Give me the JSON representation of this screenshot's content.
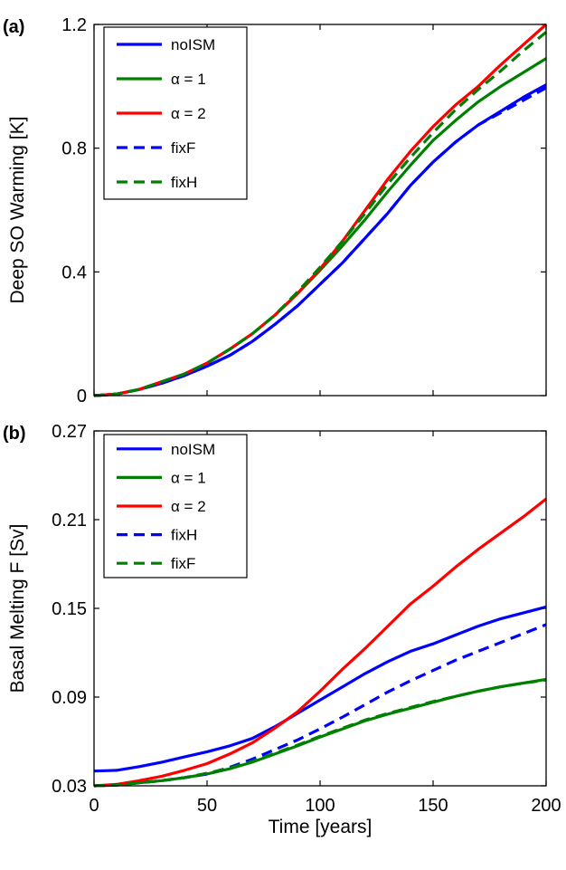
{
  "chart_data": [
    {
      "panel_label": "(a)",
      "type": "line",
      "xlabel": "",
      "ylabel": "Deep SO Warming [K]",
      "xlim": [
        0,
        200
      ],
      "ylim": [
        0,
        1.2
      ],
      "yticks": [
        0,
        0.4,
        0.8,
        1.2
      ],
      "ytick_labels": [
        "0",
        "0.4",
        "0.8",
        "1.2"
      ],
      "xticks": [
        0,
        50,
        100,
        150,
        200
      ],
      "xtick_labels": [],
      "grid": false,
      "legend_position": "top-left",
      "series": [
        {
          "name": "noISM",
          "color": "#0000ff",
          "dash": "solid",
          "x": [
            0,
            10,
            20,
            30,
            40,
            50,
            60,
            70,
            80,
            90,
            100,
            110,
            120,
            130,
            140,
            150,
            160,
            170,
            180,
            190,
            200
          ],
          "y": [
            0,
            0.005,
            0.02,
            0.04,
            0.065,
            0.095,
            0.13,
            0.175,
            0.23,
            0.29,
            0.36,
            0.43,
            0.51,
            0.59,
            0.68,
            0.755,
            0.82,
            0.875,
            0.92,
            0.965,
            1.005
          ]
        },
        {
          "name": "α = 1",
          "color": "#008000",
          "dash": "solid",
          "x": [
            0,
            10,
            20,
            30,
            40,
            50,
            60,
            70,
            80,
            90,
            100,
            110,
            120,
            130,
            140,
            150,
            160,
            170,
            180,
            190,
            200
          ],
          "y": [
            0,
            0.005,
            0.02,
            0.045,
            0.07,
            0.105,
            0.15,
            0.2,
            0.26,
            0.33,
            0.405,
            0.485,
            0.57,
            0.66,
            0.745,
            0.825,
            0.89,
            0.95,
            1.0,
            1.045,
            1.09
          ]
        },
        {
          "name": "α = 2",
          "color": "#ff0000",
          "dash": "solid",
          "x": [
            0,
            10,
            20,
            30,
            40,
            50,
            60,
            70,
            80,
            90,
            100,
            110,
            120,
            130,
            140,
            150,
            160,
            170,
            180,
            190,
            200
          ],
          "y": [
            0,
            0.005,
            0.02,
            0.045,
            0.07,
            0.105,
            0.15,
            0.2,
            0.26,
            0.33,
            0.41,
            0.5,
            0.6,
            0.7,
            0.79,
            0.87,
            0.94,
            1.0,
            1.07,
            1.135,
            1.2
          ]
        },
        {
          "name": "fixF",
          "color": "#0000ff",
          "dash": "dashed",
          "x": [
            0,
            10,
            20,
            30,
            40,
            50,
            60,
            70,
            80,
            90,
            100,
            110,
            120,
            130,
            140,
            150,
            160,
            170,
            180,
            190,
            200
          ],
          "y": [
            0,
            0.005,
            0.02,
            0.04,
            0.065,
            0.095,
            0.13,
            0.175,
            0.23,
            0.29,
            0.36,
            0.43,
            0.51,
            0.59,
            0.68,
            0.755,
            0.82,
            0.875,
            0.915,
            0.955,
            0.995
          ]
        },
        {
          "name": "fixH",
          "color": "#008000",
          "dash": "dashed",
          "x": [
            0,
            10,
            20,
            30,
            40,
            50,
            60,
            70,
            80,
            90,
            100,
            110,
            120,
            130,
            140,
            150,
            160,
            170,
            180,
            190,
            200
          ],
          "y": [
            0,
            0.005,
            0.02,
            0.045,
            0.07,
            0.105,
            0.15,
            0.2,
            0.26,
            0.335,
            0.415,
            0.5,
            0.59,
            0.685,
            0.77,
            0.85,
            0.925,
            0.99,
            1.05,
            1.115,
            1.175
          ]
        }
      ]
    },
    {
      "panel_label": "(b)",
      "type": "line",
      "xlabel": "Time [years]",
      "ylabel": "Basal Melting F [Sv]",
      "xlim": [
        0,
        200
      ],
      "ylim": [
        0.03,
        0.27
      ],
      "yticks": [
        0.03,
        0.09,
        0.15,
        0.21,
        0.27
      ],
      "ytick_labels": [
        "0.03",
        "0.09",
        "0.15",
        "0.21",
        "0.27"
      ],
      "xticks": [
        0,
        50,
        100,
        150,
        200
      ],
      "xtick_labels": [
        "0",
        "50",
        "100",
        "150",
        "200"
      ],
      "grid": false,
      "legend_position": "top-left",
      "series": [
        {
          "name": "noISM",
          "color": "#0000ff",
          "dash": "solid",
          "x": [
            0,
            10,
            20,
            30,
            40,
            50,
            60,
            70,
            80,
            90,
            100,
            110,
            120,
            130,
            140,
            150,
            160,
            170,
            180,
            190,
            200
          ],
          "y": [
            0.04,
            0.0405,
            0.043,
            0.046,
            0.0495,
            0.053,
            0.057,
            0.062,
            0.07,
            0.079,
            0.088,
            0.097,
            0.106,
            0.114,
            0.121,
            0.126,
            0.132,
            0.138,
            0.143,
            0.147,
            0.151
          ]
        },
        {
          "name": "α = 1",
          "color": "#008000",
          "dash": "solid",
          "x": [
            0,
            10,
            20,
            30,
            40,
            50,
            60,
            70,
            80,
            90,
            100,
            110,
            120,
            130,
            140,
            150,
            160,
            170,
            180,
            190,
            200
          ],
          "y": [
            0.03,
            0.0305,
            0.032,
            0.0335,
            0.0355,
            0.038,
            0.0415,
            0.046,
            0.0515,
            0.057,
            0.063,
            0.0685,
            0.074,
            0.0785,
            0.0825,
            0.0865,
            0.0905,
            0.094,
            0.097,
            0.0995,
            0.102
          ]
        },
        {
          "name": "α = 2",
          "color": "#ff0000",
          "dash": "solid",
          "x": [
            0,
            10,
            20,
            30,
            40,
            50,
            60,
            70,
            80,
            90,
            100,
            110,
            120,
            130,
            140,
            150,
            160,
            170,
            180,
            190,
            200
          ],
          "y": [
            0.03,
            0.031,
            0.0335,
            0.0365,
            0.0405,
            0.045,
            0.0515,
            0.059,
            0.069,
            0.08,
            0.094,
            0.109,
            0.123,
            0.138,
            0.153,
            0.165,
            0.178,
            0.19,
            0.201,
            0.212,
            0.224
          ]
        },
        {
          "name": "fixH",
          "color": "#0000ff",
          "dash": "dashed",
          "x": [
            0,
            10,
            20,
            30,
            40,
            50,
            60,
            70,
            80,
            90,
            100,
            110,
            120,
            130,
            140,
            150,
            160,
            170,
            180,
            190,
            200
          ],
          "y": [
            0.03,
            0.0305,
            0.032,
            0.0335,
            0.0355,
            0.038,
            0.0425,
            0.048,
            0.0545,
            0.061,
            0.0685,
            0.0765,
            0.085,
            0.0935,
            0.101,
            0.108,
            0.115,
            0.121,
            0.127,
            0.133,
            0.139
          ]
        },
        {
          "name": "fixF",
          "color": "#008000",
          "dash": "dashed",
          "x": [
            0,
            10,
            20,
            30,
            40,
            50,
            60,
            70,
            80,
            90,
            100,
            110,
            120,
            130,
            140,
            150,
            160,
            170,
            180,
            190,
            200
          ],
          "y": [
            0.03,
            0.0305,
            0.032,
            0.0335,
            0.0355,
            0.0385,
            0.042,
            0.0465,
            0.052,
            0.0575,
            0.0635,
            0.069,
            0.0745,
            0.079,
            0.083,
            0.087,
            0.0905,
            0.094,
            0.097,
            0.0995,
            0.1015
          ]
        }
      ]
    }
  ]
}
